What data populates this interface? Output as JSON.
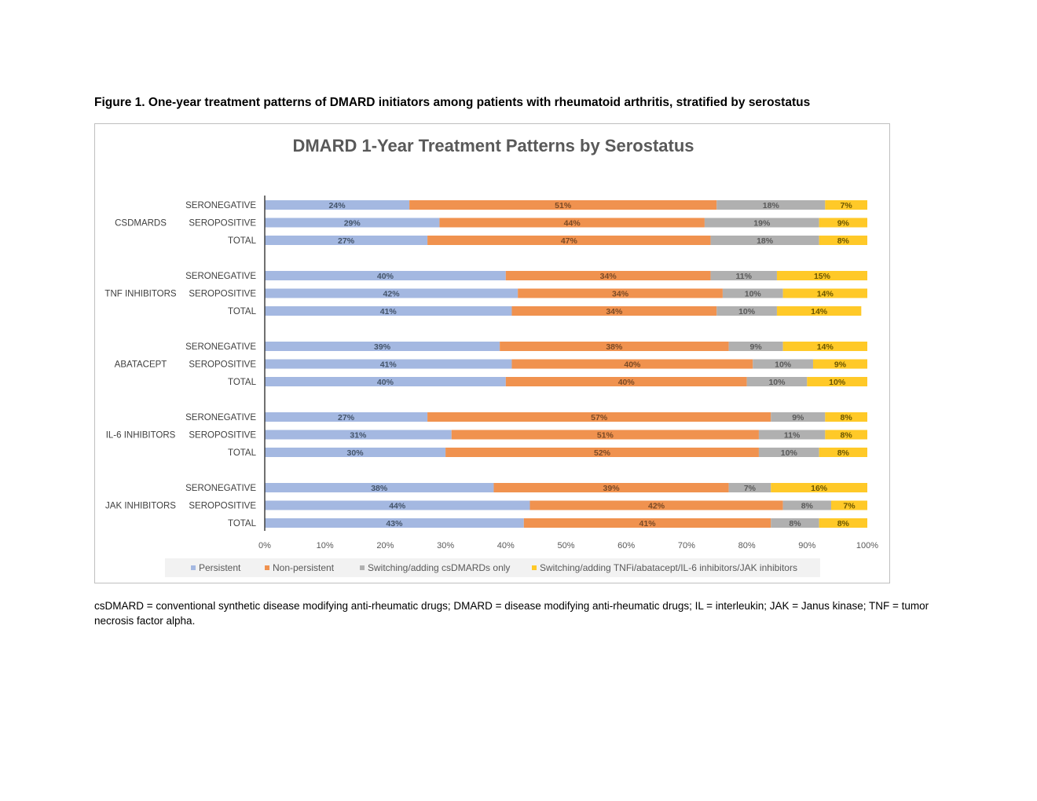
{
  "figure_caption": "Figure 1. One-year treatment patterns of DMARD initiators among patients with rheumatoid arthritis, stratified by serostatus",
  "footnote": "csDMARD = conventional synthetic disease modifying anti-rheumatic drugs; DMARD = disease modifying anti-rheumatic drugs; IL = interleukin; JAK = Janus kinase; TNF = tumor necrosis factor alpha.",
  "chart_data": {
    "type": "bar",
    "orientation": "horizontal",
    "stacking": "percent",
    "title": "DMARD 1-Year Treatment Patterns by Serostatus",
    "xlim": [
      0,
      100
    ],
    "x_ticks": [
      "0%",
      "10%",
      "20%",
      "30%",
      "40%",
      "50%",
      "60%",
      "70%",
      "80%",
      "90%",
      "100%"
    ],
    "grid": false,
    "legend_position": "bottom",
    "groups": [
      {
        "name": "CSDMARDS",
        "categories": [
          {
            "label": "SERONEGATIVE",
            "values": [
              24,
              51,
              18,
              7
            ],
            "labels": [
              "24%",
              "51%",
              "18%",
              "7%"
            ]
          },
          {
            "label": "SEROPOSITIVE",
            "values": [
              29,
              44,
              19,
              9
            ],
            "labels": [
              "29%",
              "44%",
              "19%",
              "9%"
            ]
          },
          {
            "label": "TOTAL",
            "values": [
              27,
              47,
              18,
              8
            ],
            "labels": [
              "27%",
              "47%",
              "18%",
              "8%"
            ]
          }
        ]
      },
      {
        "name": "TNF INHIBITORS",
        "categories": [
          {
            "label": "SERONEGATIVE",
            "values": [
              40,
              34,
              11,
              15
            ],
            "labels": [
              "40%",
              "34%",
              "11%",
              "15%"
            ]
          },
          {
            "label": "SEROPOSITIVE",
            "values": [
              42,
              34,
              10,
              14
            ],
            "labels": [
              "42%",
              "34%",
              "10%",
              "14%"
            ]
          },
          {
            "label": "TOTAL",
            "values": [
              41,
              34,
              10,
              14
            ],
            "labels": [
              "41%",
              "34%",
              "10%",
              "14%"
            ]
          }
        ]
      },
      {
        "name": "ABATACEPT",
        "categories": [
          {
            "label": "SERONEGATIVE",
            "values": [
              39,
              38,
              9,
              14
            ],
            "labels": [
              "39%",
              "38%",
              "9%",
              "14%"
            ]
          },
          {
            "label": "SEROPOSITIVE",
            "values": [
              41,
              40,
              10,
              9
            ],
            "labels": [
              "41%",
              "40%",
              "10%",
              "9%"
            ]
          },
          {
            "label": "TOTAL",
            "values": [
              40,
              40,
              10,
              10
            ],
            "labels": [
              "40%",
              "40%",
              "10%",
              "10%"
            ]
          }
        ]
      },
      {
        "name": "IL-6 INHIBITORS",
        "categories": [
          {
            "label": "SERONEGATIVE",
            "values": [
              27,
              57,
              9,
              8
            ],
            "labels": [
              "27%",
              "57%",
              "9%",
              "8%"
            ]
          },
          {
            "label": "SEROPOSITIVE",
            "values": [
              31,
              51,
              11,
              8
            ],
            "labels": [
              "31%",
              "51%",
              "11%",
              "8%"
            ]
          },
          {
            "label": "TOTAL",
            "values": [
              30,
              52,
              10,
              8
            ],
            "labels": [
              "30%",
              "52%",
              "10%",
              "8%"
            ]
          }
        ]
      },
      {
        "name": "JAK INHIBITORS",
        "categories": [
          {
            "label": "SERONEGATIVE",
            "values": [
              38,
              39,
              7,
              16
            ],
            "labels": [
              "38%",
              "39%",
              "7%",
              "16%"
            ]
          },
          {
            "label": "SEROPOSITIVE",
            "values": [
              44,
              42,
              8,
              7
            ],
            "labels": [
              "44%",
              "42%",
              "8%",
              "7%"
            ]
          },
          {
            "label": "TOTAL",
            "values": [
              43,
              41,
              8,
              8
            ],
            "labels": [
              "43%",
              "41%",
              "8%",
              "8%"
            ]
          }
        ]
      }
    ],
    "series": [
      {
        "name": "Persistent",
        "color": "#a4b8e1"
      },
      {
        "name": "Non-persistent",
        "color": "#f0924f"
      },
      {
        "name": "Switching/adding csDMARDs only",
        "color": "#b0b0b0"
      },
      {
        "name": "Switching/adding TNFi/abatacept/IL-6 inhibitors/JAK inhibitors",
        "color": "#ffc928"
      }
    ]
  }
}
